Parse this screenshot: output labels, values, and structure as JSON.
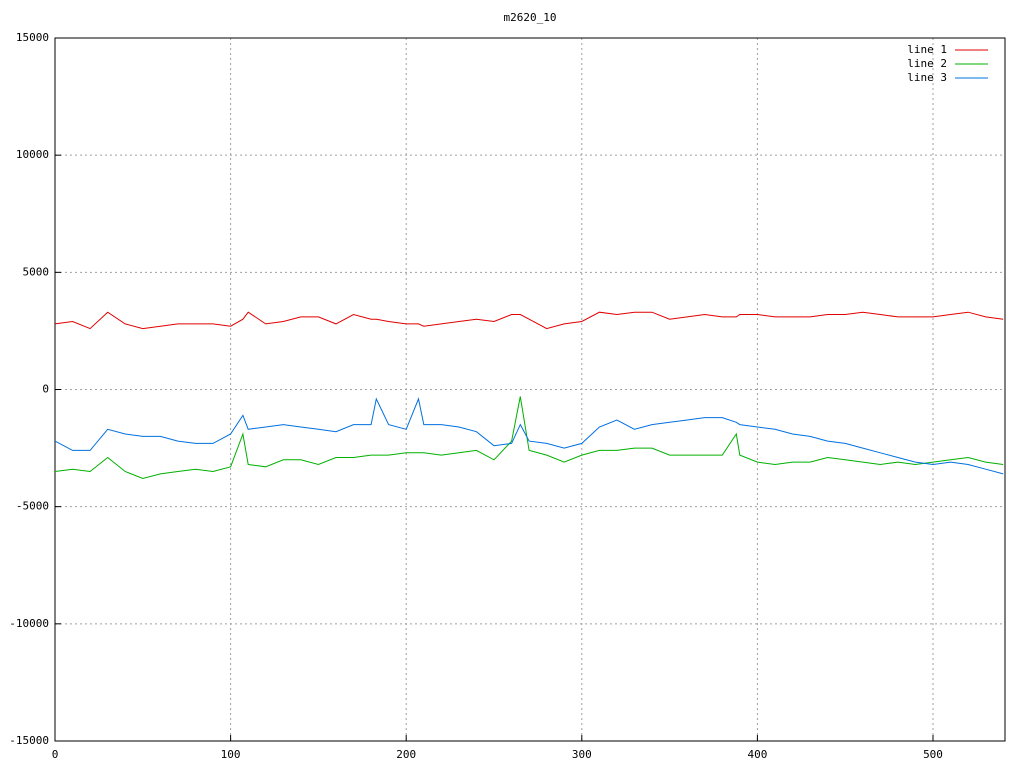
{
  "chart_data": {
    "type": "line",
    "title": "m2620_10",
    "x": [
      0,
      10,
      20,
      30,
      40,
      50,
      60,
      70,
      80,
      90,
      100,
      107,
      110,
      120,
      130,
      140,
      150,
      160,
      170,
      180,
      183,
      190,
      200,
      207,
      210,
      220,
      230,
      240,
      250,
      260,
      265,
      270,
      280,
      290,
      300,
      310,
      320,
      330,
      340,
      350,
      360,
      370,
      380,
      388,
      390,
      400,
      410,
      420,
      430,
      440,
      450,
      460,
      470,
      480,
      490,
      500,
      510,
      520,
      530,
      540
    ],
    "series": [
      {
        "name": "line 1",
        "color": "#e00000",
        "values": [
          2800,
          2900,
          2600,
          3300,
          2800,
          2600,
          2700,
          2800,
          2800,
          2800,
          2700,
          3000,
          3300,
          2800,
          2900,
          3100,
          3100,
          2800,
          3200,
          3000,
          3000,
          2900,
          2800,
          2800,
          2700,
          2800,
          2900,
          3000,
          2900,
          3200,
          3200,
          3000,
          2600,
          2800,
          2900,
          3300,
          3200,
          3300,
          3300,
          3000,
          3100,
          3200,
          3100,
          3100,
          3200,
          3200,
          3100,
          3100,
          3100,
          3200,
          3200,
          3300,
          3200,
          3100,
          3100,
          3100,
          3200,
          3300,
          3100,
          3000
        ]
      },
      {
        "name": "line 2",
        "color": "#00b000",
        "values": [
          -3500,
          -3400,
          -3500,
          -2900,
          -3500,
          -3800,
          -3600,
          -3500,
          -3400,
          -3500,
          -3300,
          -1900,
          -3200,
          -3300,
          -3000,
          -3000,
          -3200,
          -2900,
          -2900,
          -2800,
          -2800,
          -2800,
          -2700,
          -2700,
          -2700,
          -2800,
          -2700,
          -2600,
          -3000,
          -2200,
          -300,
          -2600,
          -2800,
          -3100,
          -2800,
          -2600,
          -2600,
          -2500,
          -2500,
          -2800,
          -2800,
          -2800,
          -2800,
          -1900,
          -2800,
          -3100,
          -3200,
          -3100,
          -3100,
          -2900,
          -3000,
          -3100,
          -3200,
          -3100,
          -3200,
          -3100,
          -3000,
          -2900,
          -3100,
          -3200
        ]
      },
      {
        "name": "line 3",
        "color": "#0070e0",
        "values": [
          -2200,
          -2600,
          -2600,
          -1700,
          -1900,
          -2000,
          -2000,
          -2200,
          -2300,
          -2300,
          -1900,
          -1100,
          -1700,
          -1600,
          -1500,
          -1600,
          -1700,
          -1800,
          -1500,
          -1500,
          -400,
          -1500,
          -1700,
          -400,
          -1500,
          -1500,
          -1600,
          -1800,
          -2400,
          -2300,
          -1500,
          -2200,
          -2300,
          -2500,
          -2300,
          -1600,
          -1300,
          -1700,
          -1500,
          -1400,
          -1300,
          -1200,
          -1200,
          -1400,
          -1500,
          -1600,
          -1700,
          -1900,
          -2000,
          -2200,
          -2300,
          -2500,
          -2700,
          -2900,
          -3100,
          -3200,
          -3100,
          -3200,
          -3400,
          -3600
        ]
      }
    ],
    "xlim": [
      0,
      541
    ],
    "xticks": [
      0,
      100,
      200,
      300,
      400,
      500
    ],
    "ylim": [
      -15000,
      15000
    ],
    "yticks": [
      -15000,
      -10000,
      -5000,
      0,
      5000,
      10000,
      15000
    ],
    "grid": true,
    "legend": "top-right"
  }
}
